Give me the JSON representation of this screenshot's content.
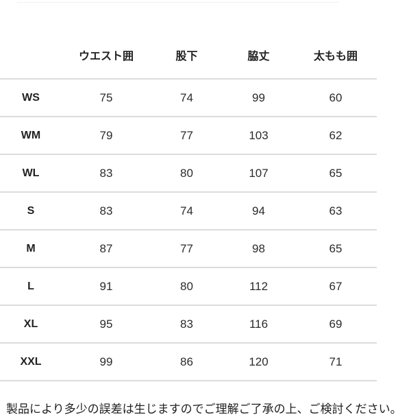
{
  "chart_data": {
    "type": "table",
    "columns": [
      "ウエスト囲",
      "股下",
      "脇丈",
      "太もも囲"
    ],
    "rows": [
      {
        "label": "WS",
        "values": [
          "75",
          "74",
          "99",
          "60"
        ]
      },
      {
        "label": "WM",
        "values": [
          "79",
          "77",
          "103",
          "62"
        ]
      },
      {
        "label": "WL",
        "values": [
          "83",
          "80",
          "107",
          "65"
        ]
      },
      {
        "label": "S",
        "values": [
          "83",
          "74",
          "94",
          "63"
        ]
      },
      {
        "label": "M",
        "values": [
          "87",
          "77",
          "98",
          "65"
        ]
      },
      {
        "label": "L",
        "values": [
          "91",
          "80",
          "112",
          "67"
        ]
      },
      {
        "label": "XL",
        "values": [
          "95",
          "83",
          "116",
          "69"
        ]
      },
      {
        "label": "XXL",
        "values": [
          "99",
          "86",
          "120",
          "71"
        ]
      }
    ],
    "layout": {
      "first_column": "size-labels",
      "grid": "horizontal-dividers-only",
      "header_position": "top"
    }
  },
  "footer": {
    "note": "製品により多少の誤差は生じますのでご理解ご了承の上、ご検討ください。"
  },
  "colors": {
    "divider": "#dcdcdc",
    "text": "#2b2b2b"
  }
}
